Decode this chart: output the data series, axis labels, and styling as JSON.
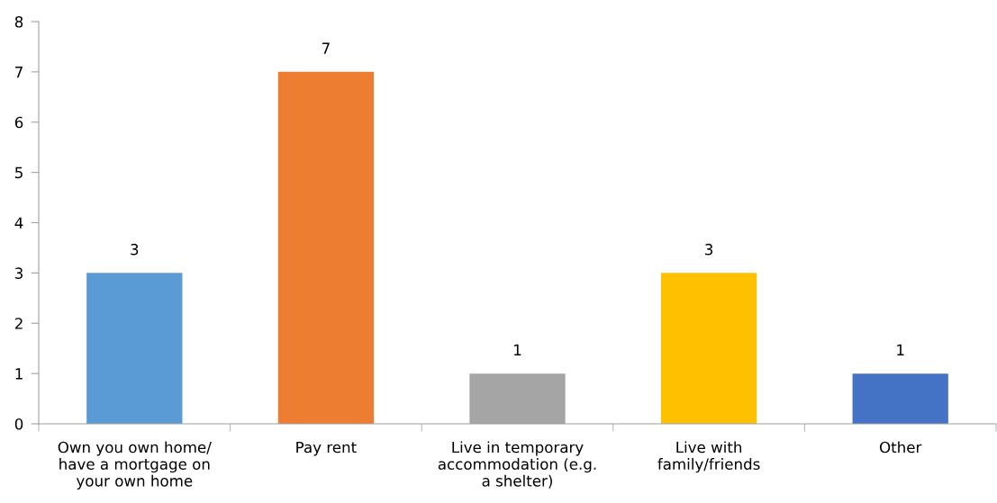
{
  "chart_data": {
    "type": "bar",
    "categories": [
      "Own you own home/\nhave a mortgage on\nyour own home",
      "Pay rent",
      "Live in temporary\naccommodation (e.g.\na shelter)",
      "Live with\nfamily/friends",
      "Other"
    ],
    "values": [
      3,
      7,
      1,
      3,
      1
    ],
    "colors": [
      "#5b9bd5",
      "#ed7d31",
      "#a5a5a5",
      "#ffc000",
      "#4472c4"
    ],
    "ylim": [
      0,
      8
    ],
    "yticks": [
      0,
      1,
      2,
      3,
      4,
      5,
      6,
      7,
      8
    ],
    "data_labels": true,
    "grid": false,
    "legend": false
  }
}
